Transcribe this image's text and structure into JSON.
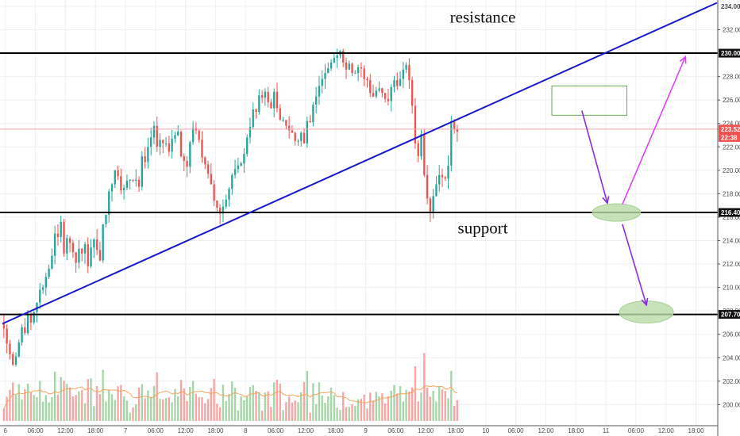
{
  "chart_data": {
    "type": "candlestick",
    "title": "",
    "xlabel": "",
    "ylabel": "",
    "colors": {
      "up": "#26a69a",
      "down": "#ef5350",
      "volume_up": "#a5d6a7",
      "volume_down": "#f8a5a5",
      "volume_ma": "#f7a35c",
      "trendline": "#1a1acd",
      "arrow": "#8a2be2",
      "arrow_up": "#e040fb",
      "ellipse": "#b9dba8",
      "rect": "#6aa84f",
      "price_line": "#f4a3a3",
      "price_badge": "#ef5350",
      "level_line": "#000000",
      "grid": "#eef0f3"
    },
    "y_axis": {
      "range": [
        198.4,
        234.2
      ],
      "tick_labels": [
        "200.00",
        "202.00",
        "204.00",
        "206.00",
        "208.00",
        "210.00",
        "212.00",
        "214.00",
        "216.00",
        "218.00",
        "220.00",
        "222.00",
        "224.00",
        "226.00",
        "228.00",
        "230.00",
        "232.00",
        "234.00"
      ],
      "tick_values": [
        200,
        202,
        204,
        206,
        208,
        210,
        212,
        214,
        216,
        218,
        220,
        222,
        224,
        226,
        228,
        230,
        232,
        234
      ]
    },
    "x_axis": {
      "range": [
        0,
        238
      ],
      "tick_labels": [
        "6",
        "06:00",
        "12:00",
        "18:00",
        "7",
        "06:00",
        "12:00",
        "18:00",
        "8",
        "06:00",
        "12:00",
        "18:00",
        "9",
        "06:00",
        "12:00",
        "18:00",
        "10",
        "06:00",
        "12:00",
        "18:00",
        "11",
        "06:00",
        "12:00",
        "18:00"
      ],
      "tick_positions": [
        1,
        11,
        21,
        31,
        41,
        51,
        61,
        71,
        81,
        91,
        101,
        111,
        121,
        131,
        141,
        151,
        161,
        171,
        181,
        191,
        201,
        211,
        221,
        231
      ]
    },
    "price_axis_badges": [
      {
        "label": "234.00",
        "value": 234,
        "style": "plain"
      },
      {
        "label": "230.00",
        "value": 230,
        "style": "dark"
      },
      {
        "label": "223.52",
        "value": 223.52,
        "style": "red"
      },
      {
        "label": "22:38",
        "value": 222.8,
        "style": "red"
      },
      {
        "label": "216.40",
        "value": 216.4,
        "style": "dark"
      },
      {
        "label": "207.70",
        "value": 207.7,
        "style": "dark"
      }
    ],
    "current_price": 223.52,
    "levels": [
      {
        "name": "resistance",
        "value": 230
      },
      {
        "name": "support",
        "value": 216.4
      },
      {
        "name": "",
        "value": 207.7
      }
    ],
    "trendline": {
      "x": [
        0,
        238
      ],
      "y": [
        206.9,
        234.3
      ]
    },
    "annotations": [
      {
        "text": "resistance",
        "x": 160,
        "y": 232.6
      },
      {
        "text": "support",
        "x": 160,
        "y": 214.6
      }
    ],
    "rectangle": {
      "x0": 183,
      "x1": 208,
      "y0": 224.7,
      "y1": 227.2
    },
    "ellipses": [
      {
        "cx": 204.5,
        "cy": 216.4,
        "rx": 8,
        "ry": 0.75
      },
      {
        "cx": 214.5,
        "cy": 207.9,
        "rx": 9,
        "ry": 0.95
      }
    ],
    "arrows": [
      {
        "from": [
          193,
          225.1
        ],
        "to": [
          201.5,
          217.2
        ],
        "color": "arrow"
      },
      {
        "from": [
          206.5,
          215.4
        ],
        "to": [
          214.5,
          208.5
        ],
        "color": "arrow"
      },
      {
        "from": [
          206.5,
          217.1
        ],
        "to": [
          227.5,
          229.7
        ],
        "color": "arrow_up"
      }
    ],
    "candles": {
      "closes": [
        206.5,
        205.2,
        204.3,
        203.4,
        204.1,
        205.3,
        206.6,
        206.1,
        207.7,
        207.0,
        207.9,
        208.7,
        209.8,
        210.0,
        210.9,
        211.6,
        212.7,
        214.6,
        214.3,
        215.6,
        212.9,
        214.2,
        213.8,
        213.0,
        212.1,
        213.3,
        212.9,
        213.7,
        211.8,
        213.4,
        214.1,
        213.2,
        212.3,
        215.4,
        216.2,
        218.2,
        218.8,
        220.0,
        219.5,
        218.3,
        218.5,
        219.1,
        219.2,
        219.1,
        219.2,
        218.6,
        221.2,
        220.7,
        222.0,
        222.8,
        223.8,
        222.0,
        222.6,
        222.3,
        222.3,
        221.6,
        222.7,
        223.0,
        223.3,
        221.2,
        220.8,
        220.3,
        222.4,
        223.6,
        223.4,
        222.6,
        221.1,
        220.5,
        219.7,
        218.8,
        217.4,
        216.8,
        216.3,
        216.9,
        217.5,
        218.4,
        219.6,
        220.1,
        220.4,
        220.6,
        221.4,
        222.8,
        223.7,
        225.2,
        225.0,
        226.4,
        226.2,
        226.7,
        225.8,
        225.3,
        226.7,
        225.3,
        224.3,
        224.3,
        223.8,
        223.4,
        223.2,
        222.5,
        222.5,
        223.2,
        222.3,
        224.2,
        224.1,
        225.6,
        226.3,
        227.2,
        227.8,
        228.3,
        228.7,
        229.2,
        229.6,
        229.8,
        230.2,
        229.2,
        228.6,
        229.1,
        228.3,
        228.3,
        228.8,
        228.7,
        227.8,
        227.7,
        226.6,
        226.3,
        226.8,
        227.0,
        226.6,
        226.1,
        225.9,
        227.1,
        227.7,
        227.2,
        227.8,
        228.6,
        229.0,
        227.7,
        225.5,
        222.3,
        221.2,
        223.1,
        219.6,
        217.6,
        216.4,
        217.8,
        218.8,
        219.6,
        219.4,
        219.3,
        220.4,
        224.2,
        223.5,
        223.3
      ],
      "opens_note": "each candle opens at the previous close"
    },
    "volume": {
      "note": "volume histogram at bottom, unlabeled values",
      "ma_visible": true
    }
  }
}
